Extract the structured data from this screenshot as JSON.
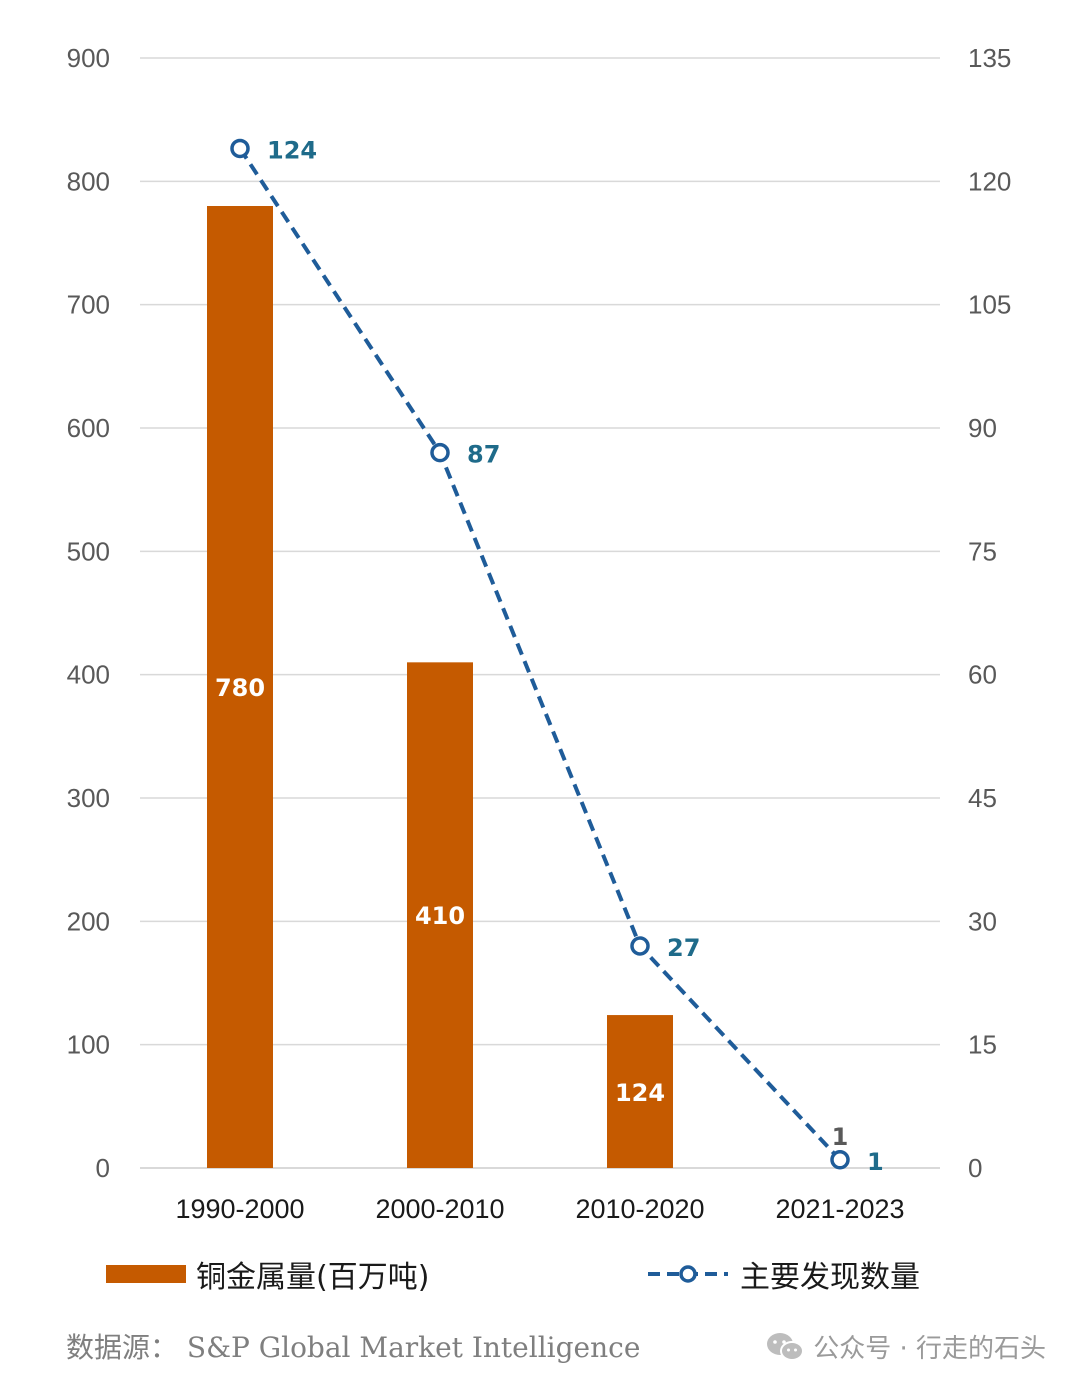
{
  "chart_data": {
    "type": "bar",
    "categories": [
      "1990-2000",
      "2000-2010",
      "2010-2020",
      "2021-2023"
    ],
    "series": [
      {
        "name": "铜金属量(百万吨)",
        "type": "bar",
        "axis": "left",
        "color": "#C55A00",
        "values": [
          780,
          410,
          124,
          null
        ],
        "labels": [
          "780",
          "410",
          "124",
          ""
        ]
      },
      {
        "name": "主要发现数量",
        "type": "line",
        "style": "dashed",
        "marker": "hollow-circle",
        "axis": "right",
        "color": "#1F5C99",
        "values": [
          124,
          87,
          27,
          1
        ],
        "labels": [
          "124",
          "87",
          "27",
          "1"
        ]
      }
    ],
    "extra_annotation": {
      "category": "2021-2023",
      "text": "1"
    },
    "y_left": {
      "range": [
        0,
        900
      ],
      "ticks": [
        "0",
        "100",
        "200",
        "300",
        "400",
        "500",
        "600",
        "700",
        "800",
        "900"
      ]
    },
    "y_right": {
      "range": [
        0,
        135
      ],
      "ticks": [
        "0",
        "15",
        "30",
        "45",
        "60",
        "75",
        "90",
        "105",
        "120",
        "135"
      ]
    },
    "grid": true,
    "legend_position": "bottom"
  },
  "legend": {
    "bar_label": "铜金属量(百万吨)",
    "line_label": "主要发现数量"
  },
  "source": "数据源： S&P Global Market Intelligence",
  "watermark": "公众号 · 行走的石头",
  "colors": {
    "bar": "#C55A00",
    "line": "#1F5C99",
    "line_label": "#1F6B8A",
    "grid": "#d9d9d9",
    "axis_text": "#595959"
  },
  "icons": [
    "wechat-icon"
  ]
}
